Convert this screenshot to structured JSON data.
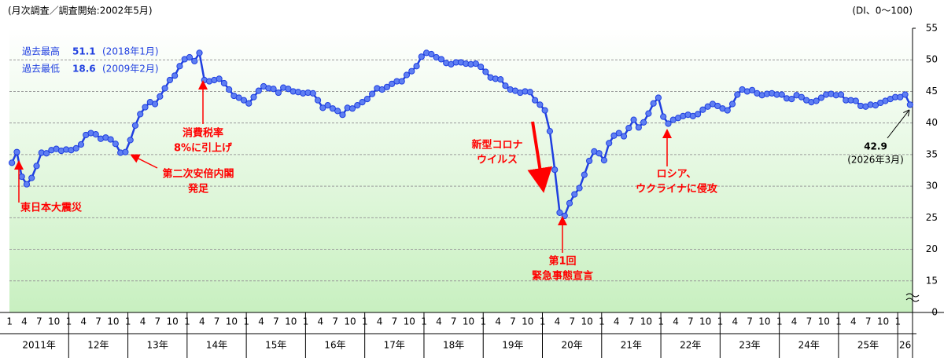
{
  "chart_data": {
    "type": "line",
    "subtitle": "(月次調査／調査開始:2002年5月)",
    "unit_label": "(DI、0～100)",
    "categories": [
      "1",
      null,
      null,
      "4",
      null,
      null,
      "7",
      null,
      null,
      "10",
      null,
      null,
      "1",
      null,
      null,
      "4",
      null,
      null,
      "7",
      null,
      null,
      "10",
      null,
      null,
      "1",
      null,
      null,
      "4",
      null,
      null,
      "7",
      null,
      null,
      "10",
      null,
      null,
      "1",
      null,
      null,
      "4",
      null,
      null,
      "7",
      null,
      null,
      "10",
      null,
      null,
      "1",
      null,
      null,
      "4",
      null,
      null,
      "7",
      null,
      null,
      "10",
      null,
      null,
      "1",
      null,
      null,
      "4",
      null,
      null,
      "7",
      null,
      null,
      "10",
      null,
      null,
      "1",
      null,
      null,
      "4",
      null,
      null,
      "7",
      null,
      null,
      "10",
      null,
      null,
      "1",
      null,
      null,
      "4",
      null,
      null,
      "7",
      null,
      null,
      "10",
      null,
      null,
      "1",
      null,
      null,
      "4",
      null,
      null,
      "7",
      null,
      null,
      "10",
      null,
      null,
      "1",
      null,
      null,
      "4",
      null,
      null,
      "7",
      null,
      null,
      "10",
      null,
      null,
      "1",
      null,
      null,
      "4",
      null,
      null,
      "7",
      null,
      null,
      "10",
      null,
      null,
      "1",
      null,
      null,
      "4",
      null,
      null,
      "7",
      null,
      null,
      "10",
      null,
      null,
      "1",
      null,
      null,
      "4",
      null,
      null,
      "7",
      null,
      null,
      "10",
      null,
      null,
      "1",
      null,
      null,
      "4",
      null,
      null,
      "7",
      null,
      null,
      "10",
      null,
      null,
      "1",
      null,
      null,
      "4",
      null,
      null,
      "7",
      null,
      null,
      "10",
      null,
      null,
      "1",
      null,
      null
    ],
    "year_labels": [
      "2011年",
      "12年",
      "13年",
      "14年",
      "15年",
      "16年",
      "17年",
      "18年",
      "19年",
      "20年",
      "21年",
      "22年",
      "23年",
      "24年",
      "25年",
      "26"
    ],
    "values": [
      33.7,
      35.4,
      31.5,
      30.3,
      31.3,
      33.2,
      35.3,
      35.2,
      35.7,
      35.9,
      35.6,
      35.8,
      35.7,
      36.0,
      36.6,
      38.1,
      38.4,
      38.2,
      37.5,
      37.7,
      37.4,
      36.7,
      35.3,
      35.4,
      37.3,
      39.6,
      41.4,
      42.5,
      43.3,
      43.0,
      44.2,
      45.5,
      46.8,
      47.5,
      49.0,
      50.1,
      50.4,
      49.8,
      51.1,
      46.8,
      46.6,
      46.8,
      47.0,
      46.3,
      45.3,
      44.3,
      44.0,
      43.6,
      43.1,
      44.1,
      45.1,
      45.8,
      45.5,
      45.4,
      44.8,
      45.6,
      45.4,
      45.0,
      44.9,
      44.7,
      44.8,
      44.7,
      43.6,
      42.4,
      42.8,
      42.3,
      41.9,
      41.3,
      42.4,
      42.3,
      42.8,
      43.3,
      43.8,
      44.6,
      45.5,
      45.3,
      45.7,
      46.2,
      46.6,
      46.6,
      47.6,
      48.2,
      49.0,
      50.5,
      51.1,
      50.9,
      50.4,
      50.1,
      49.5,
      49.3,
      49.6,
      49.6,
      49.4,
      49.3,
      49.4,
      48.9,
      48.1,
      47.2,
      47.0,
      46.9,
      45.9,
      45.3,
      45.1,
      44.8,
      45.0,
      44.9,
      43.6,
      42.9,
      42.0,
      38.7,
      32.6,
      25.8,
      25.3,
      27.3,
      28.7,
      29.7,
      31.8,
      34.0,
      35.5,
      35.2,
      34.1,
      36.8,
      38.0,
      38.4,
      37.9,
      39.2,
      40.5,
      39.3,
      40.1,
      41.5,
      43.1,
      44.0,
      41.0,
      39.9,
      40.5,
      40.8,
      41.1,
      41.3,
      41.1,
      41.4,
      42.1,
      42.6,
      43.0,
      42.7,
      42.3,
      42.0,
      43.0,
      44.5,
      45.3,
      45.0,
      45.2,
      44.7,
      44.4,
      44.6,
      44.7,
      44.5,
      44.5,
      43.9,
      43.8,
      44.4,
      44.1,
      43.6,
      43.3,
      43.5,
      44.0,
      44.5,
      44.6,
      44.4,
      44.5,
      43.6,
      43.6,
      43.5,
      42.7,
      42.6,
      42.9,
      42.8,
      43.2,
      43.5,
      43.8,
      44.1,
      44.1,
      44.5,
      42.9
    ],
    "color": "#1f3fe0",
    "marker_color": "#5f7ff2",
    "ylim": [
      0,
      55
    ],
    "yticks": [
      0,
      15,
      20,
      25,
      30,
      35,
      40,
      45,
      50,
      55
    ],
    "axis_break": true,
    "grid": true,
    "last_point_note": "(2026年3月)",
    "records": [
      {
        "label": "過去最高",
        "value": 51.1,
        "date": "(2018年1月)"
      },
      {
        "label": "過去最低",
        "value": 18.6,
        "date": "(2009年2月)"
      }
    ],
    "annotations": [
      [
        "東日本大震災"
      ],
      [
        "第二次安倍内閣",
        "発足"
      ],
      [
        "消費税率",
        "8%に引上げ"
      ],
      [
        "新型コロナ",
        "ウイルス"
      ],
      [
        "第1回",
        "緊急事態宣言"
      ],
      [
        "ロシア、",
        "ウクライナに侵攻"
      ]
    ]
  }
}
